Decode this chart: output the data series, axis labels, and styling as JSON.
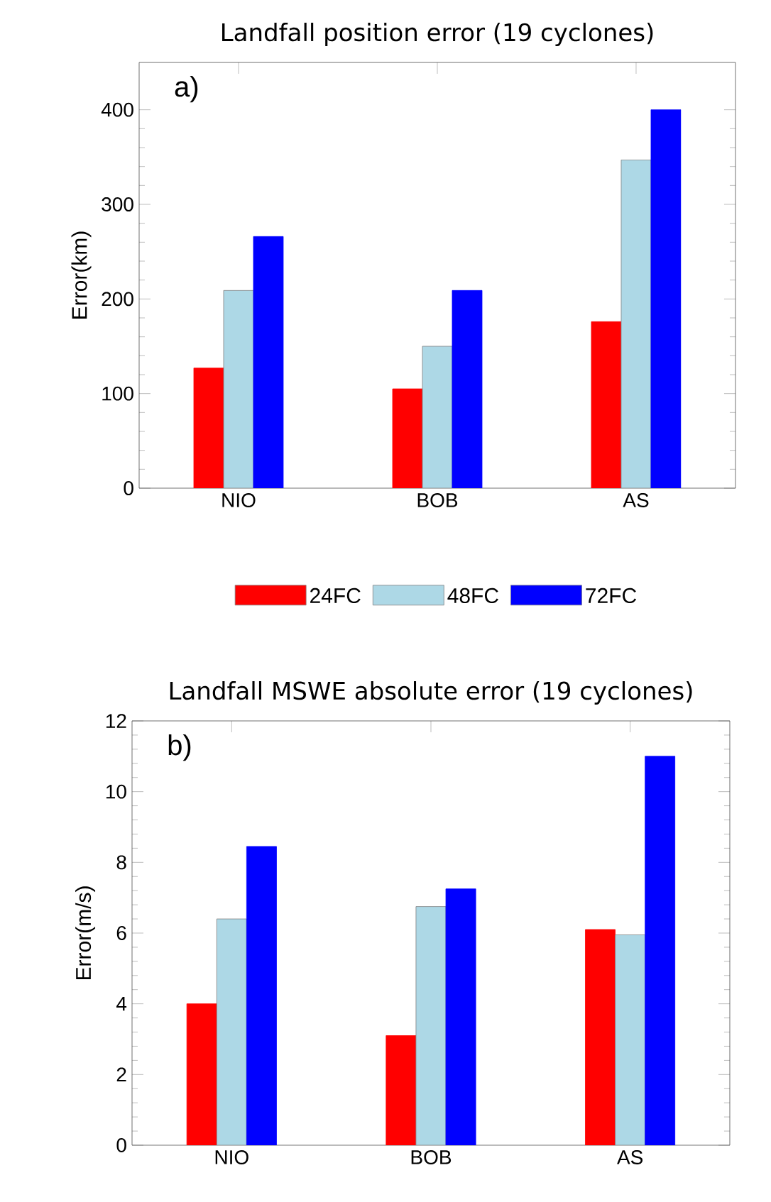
{
  "chart_data": [
    {
      "type": "bar",
      "title": "Landfall position error (19 cyclones)",
      "ylabel": "Error(km)",
      "categories": [
        "NIO",
        "BOB",
        "AS"
      ],
      "series": [
        {
          "name": "24FC",
          "color": "#ff0000",
          "values": [
            127,
            105,
            176
          ]
        },
        {
          "name": "48FC",
          "color": "#add8e6",
          "values": [
            209,
            150,
            347
          ]
        },
        {
          "name": "72FC",
          "color": "#0000ff",
          "values": [
            266,
            209,
            400
          ]
        }
      ],
      "ylim": [
        0,
        450
      ],
      "yticks": [
        0,
        100,
        200,
        300,
        400
      ],
      "legend": "bottom",
      "annotations": [
        "a)"
      ]
    },
    {
      "type": "bar",
      "title": "Landfall MSWE absolute error (19 cyclones)",
      "ylabel": "Error(m/s)",
      "categories": [
        "NIO",
        "BOB",
        "AS"
      ],
      "series": [
        {
          "color": "#ff0000",
          "values": [
            4.0,
            3.1,
            6.1
          ]
        },
        {
          "color": "#add8e6",
          "values": [
            6.4,
            6.75,
            5.95
          ]
        },
        {
          "color": "#0000ff",
          "values": [
            8.45,
            7.25,
            11.0
          ]
        }
      ],
      "ylim": [
        0,
        12
      ],
      "yticks": [
        0,
        2,
        4,
        6,
        8,
        10,
        12
      ],
      "annotations": [
        "b)"
      ]
    }
  ]
}
